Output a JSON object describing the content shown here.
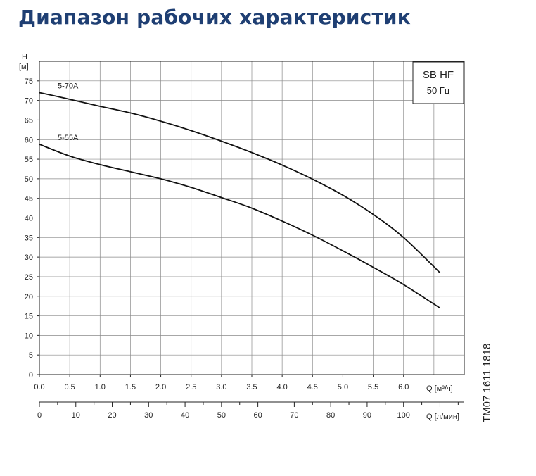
{
  "page": {
    "title": "Диапазон рабочих характеристик"
  },
  "chart_data": {
    "type": "line",
    "ylabel": "H",
    "yunit": "[м]",
    "xlabel": "Q [м³/ч]",
    "x2label": "Q [л/мин]",
    "xlim": [
      0,
      7
    ],
    "ylim": [
      0,
      80
    ],
    "x2lim": [
      0,
      116.67
    ],
    "x_ticks": [
      "0.0",
      "0.5",
      "1.0",
      "1.5",
      "2.0",
      "2.5",
      "3.0",
      "3.5",
      "4.0",
      "4.5",
      "5.0",
      "5.5",
      "6.0"
    ],
    "y_ticks": [
      "0",
      "5",
      "10",
      "15",
      "20",
      "25",
      "30",
      "35",
      "40",
      "45",
      "50",
      "55",
      "60",
      "65",
      "70",
      "75"
    ],
    "x2_ticks": [
      "0",
      "10",
      "20",
      "30",
      "40",
      "50",
      "60",
      "70",
      "80",
      "90",
      "100"
    ],
    "grid": true,
    "legend_box": {
      "title": "SB HF",
      "subtitle": "50 Гц"
    },
    "side_text": "TM07 1611 1818",
    "series": [
      {
        "name": "5-70A",
        "x": [
          0,
          0.5,
          1.0,
          1.5,
          2.0,
          2.5,
          3.0,
          3.5,
          4.0,
          4.5,
          5.0,
          5.5,
          6.0,
          6.6
        ],
        "y": [
          72,
          70.3,
          68.5,
          66.8,
          64.7,
          62.3,
          59.6,
          56.7,
          53.5,
          49.9,
          45.8,
          40.9,
          35.0,
          26
        ]
      },
      {
        "name": "5-55A",
        "x": [
          0,
          0.5,
          1.0,
          1.5,
          2.0,
          2.5,
          3.0,
          3.5,
          4.0,
          4.5,
          5.0,
          5.5,
          6.0,
          6.6
        ],
        "y": [
          58.8,
          55.8,
          53.6,
          51.8,
          50.0,
          47.8,
          45.2,
          42.5,
          39.2,
          35.6,
          31.6,
          27.4,
          23.0,
          17
        ]
      }
    ]
  }
}
